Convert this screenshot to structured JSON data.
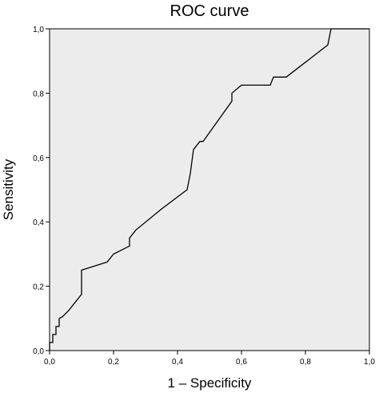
{
  "chart_data": {
    "type": "line",
    "title": "ROC curve",
    "xlabel": "1 – Specificity",
    "ylabel": "Sensitivity",
    "xlim": [
      0,
      1
    ],
    "ylim": [
      0,
      1
    ],
    "x_ticks": [
      "0,0",
      "0,2",
      "0,4",
      "0,6",
      "0,8",
      "1,0"
    ],
    "y_ticks": [
      "0,0",
      "0,2",
      "0,4",
      "0,6",
      "0,8",
      "1,0"
    ],
    "grid": false,
    "background_color": "#ececec",
    "line_color": "#000000",
    "series": [
      {
        "x": [
          0.0,
          0.0,
          0.005,
          0.01,
          0.01,
          0.02,
          0.02,
          0.03,
          0.03,
          0.04,
          0.06,
          0.1,
          0.1,
          0.18,
          0.2,
          0.25,
          0.25,
          0.27,
          0.35,
          0.43,
          0.44,
          0.45,
          0.47,
          0.48,
          0.57,
          0.57,
          0.6,
          0.69,
          0.7,
          0.72,
          0.74,
          0.87,
          0.87,
          0.88,
          1.0
        ],
        "y": [
          0.0,
          0.025,
          0.025,
          0.025,
          0.05,
          0.05,
          0.075,
          0.075,
          0.1,
          0.105,
          0.125,
          0.175,
          0.25,
          0.275,
          0.3,
          0.325,
          0.35,
          0.375,
          0.44,
          0.5,
          0.55,
          0.625,
          0.65,
          0.65,
          0.775,
          0.8,
          0.825,
          0.825,
          0.85,
          0.85,
          0.85,
          0.95,
          0.95,
          1.0,
          1.0
        ]
      }
    ]
  }
}
